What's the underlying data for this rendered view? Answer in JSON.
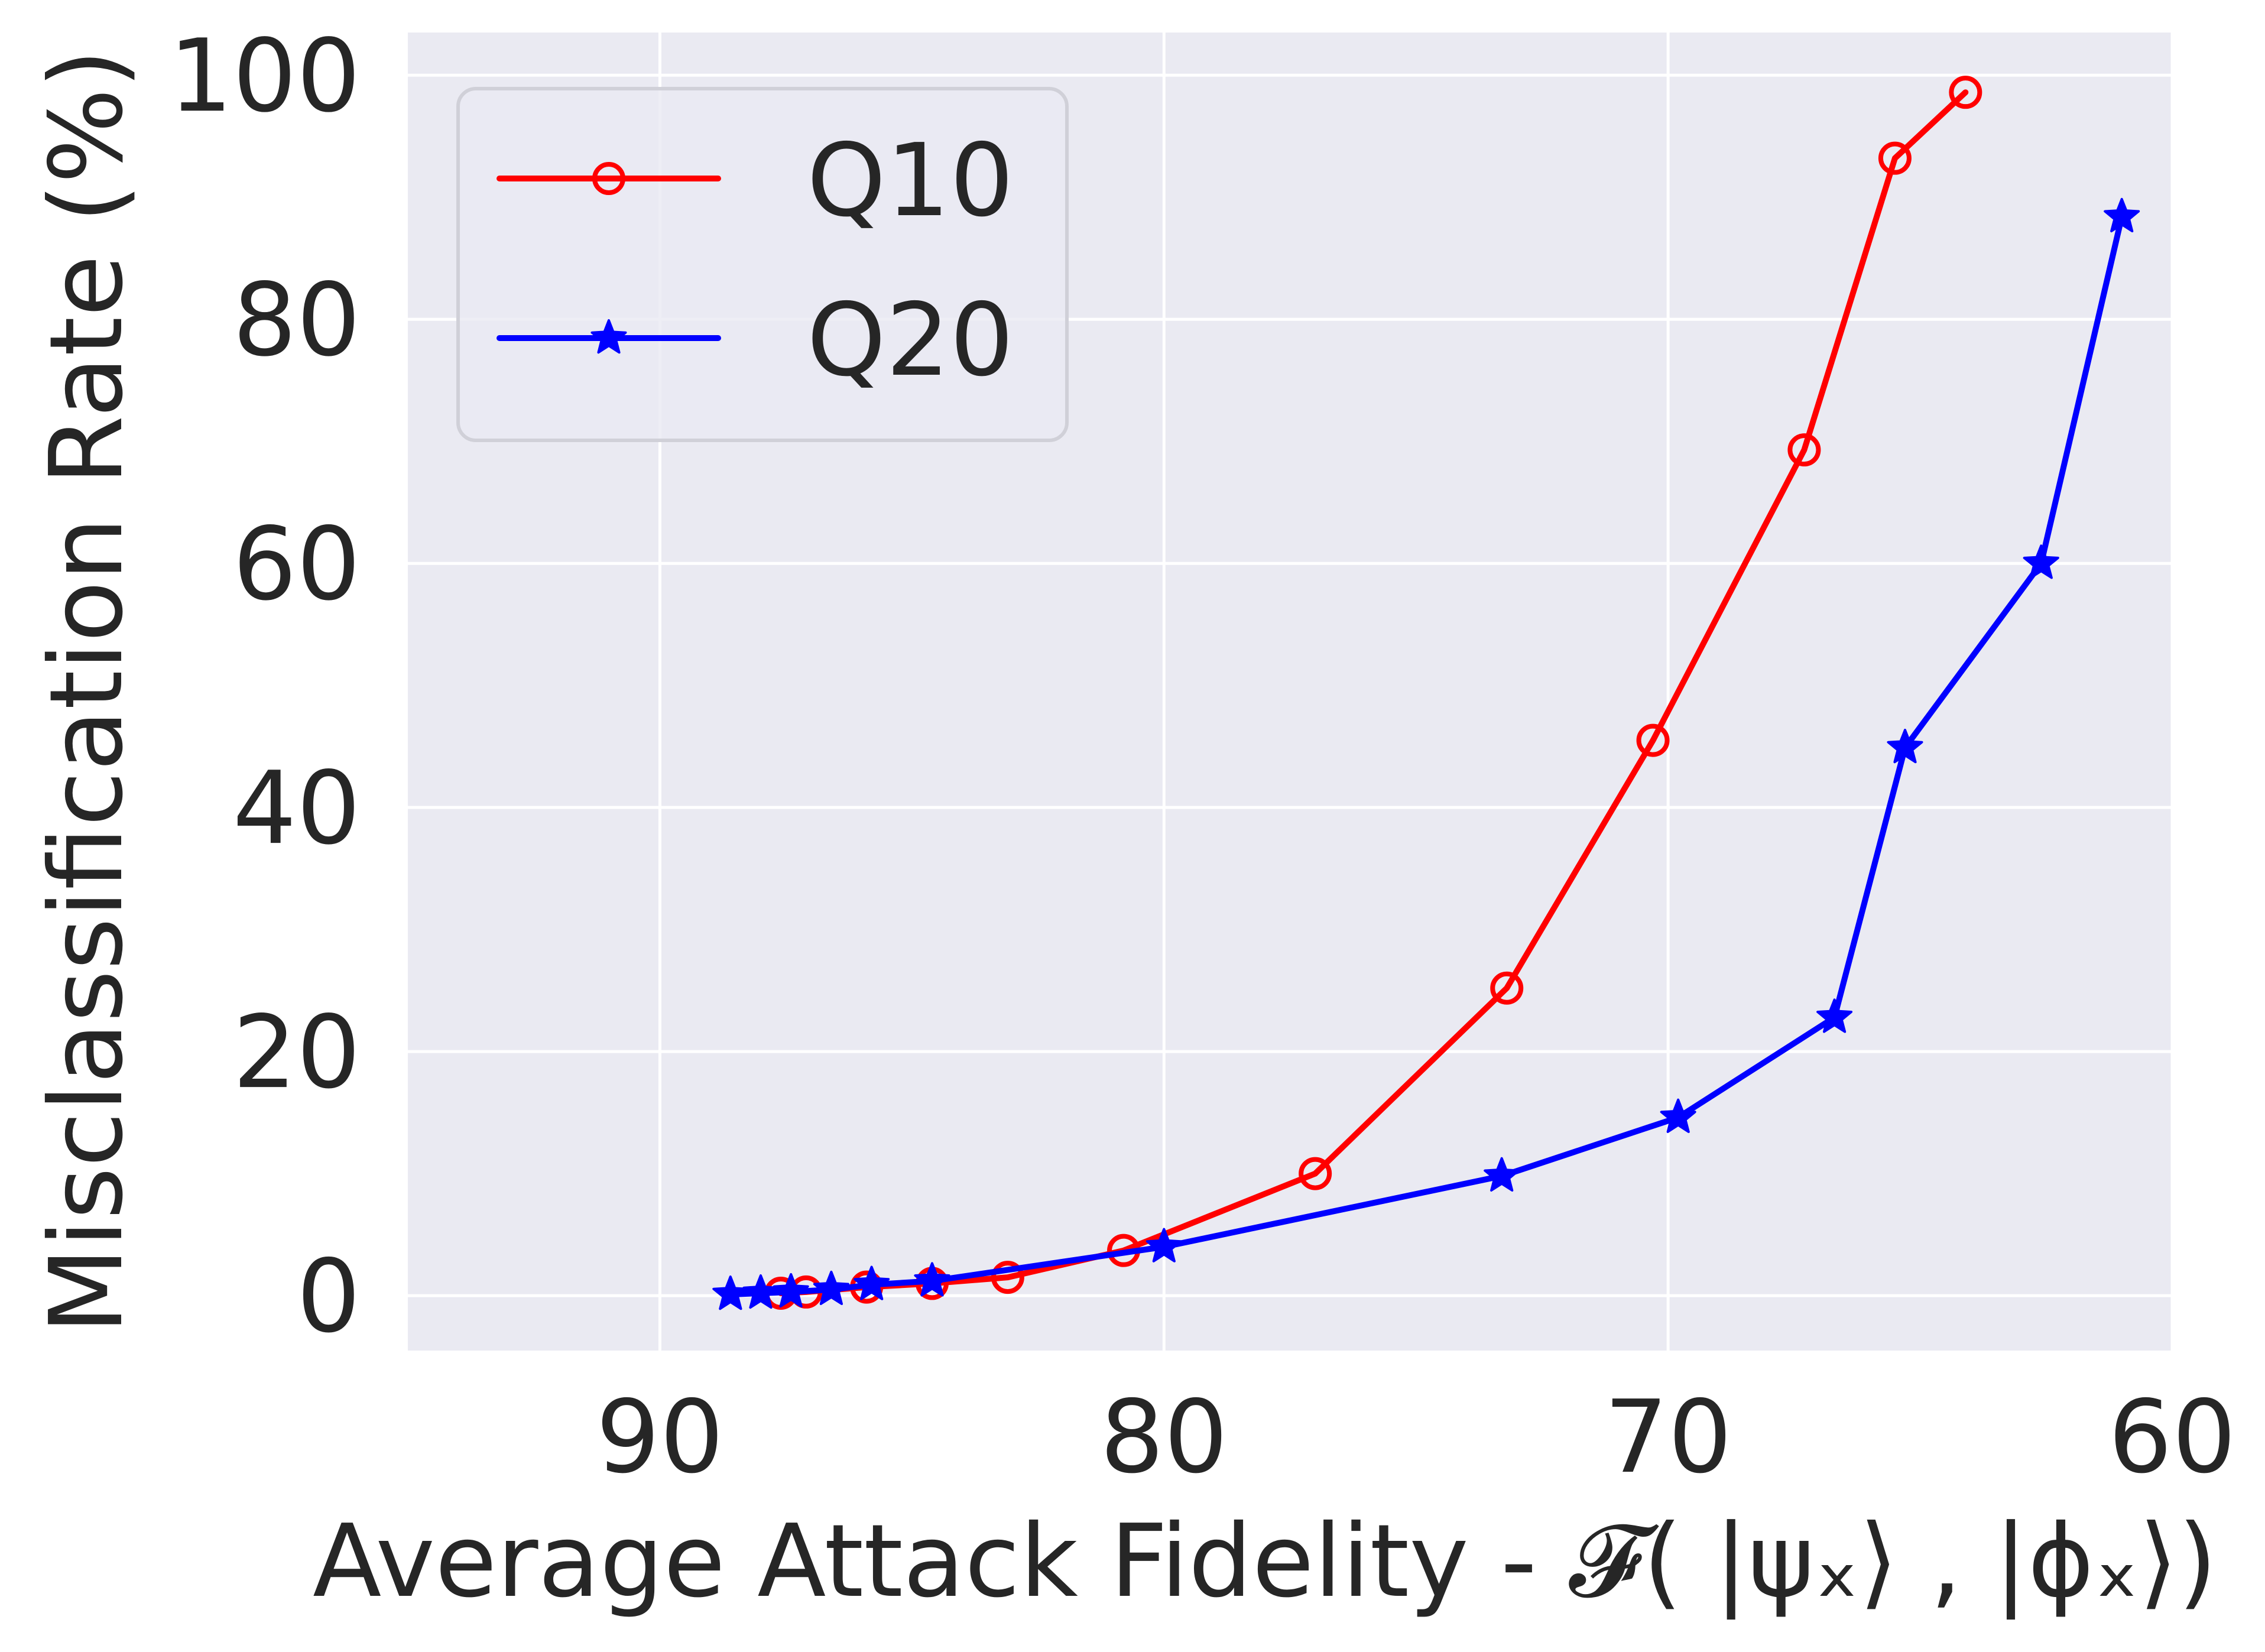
{
  "chart_data": {
    "type": "line",
    "xlabel": "Average Attack Fidelity - 𝓕( |ψₓ⟩ , |ϕₓ⟩)",
    "ylabel": "Misclassification Rate (%)",
    "xlim": [
      95,
      60
    ],
    "ylim": [
      -4.5,
      103.5
    ],
    "x_ticks": [
      90,
      80,
      70,
      60
    ],
    "y_ticks": [
      0,
      20,
      40,
      60,
      80,
      100
    ],
    "grid": true,
    "background": "#eaeaf2",
    "legend": {
      "placement": "top-left"
    },
    "series": [
      {
        "name": "Q10",
        "color": "#ff0000",
        "marker": "open-circle",
        "x": [
          87.6,
          87.1,
          85.9,
          84.6,
          83.1,
          80.8,
          77.0,
          73.2,
          70.3,
          67.3,
          65.5,
          64.1
        ],
        "y": [
          0.2,
          0.3,
          0.7,
          1.0,
          1.5,
          3.7,
          10.0,
          25.2,
          45.5,
          69.3,
          93.2,
          98.6
        ]
      },
      {
        "name": "Q20",
        "color": "#0000ff",
        "marker": "star",
        "x": [
          88.6,
          88.0,
          87.4,
          86.6,
          85.8,
          84.6,
          80.0,
          73.3,
          69.8,
          66.7,
          65.3,
          62.6,
          61.0
        ],
        "y": [
          0.1,
          0.2,
          0.3,
          0.5,
          0.9,
          1.2,
          4.0,
          9.8,
          14.6,
          22.8,
          44.9,
          60.0,
          88.4
        ]
      }
    ]
  }
}
